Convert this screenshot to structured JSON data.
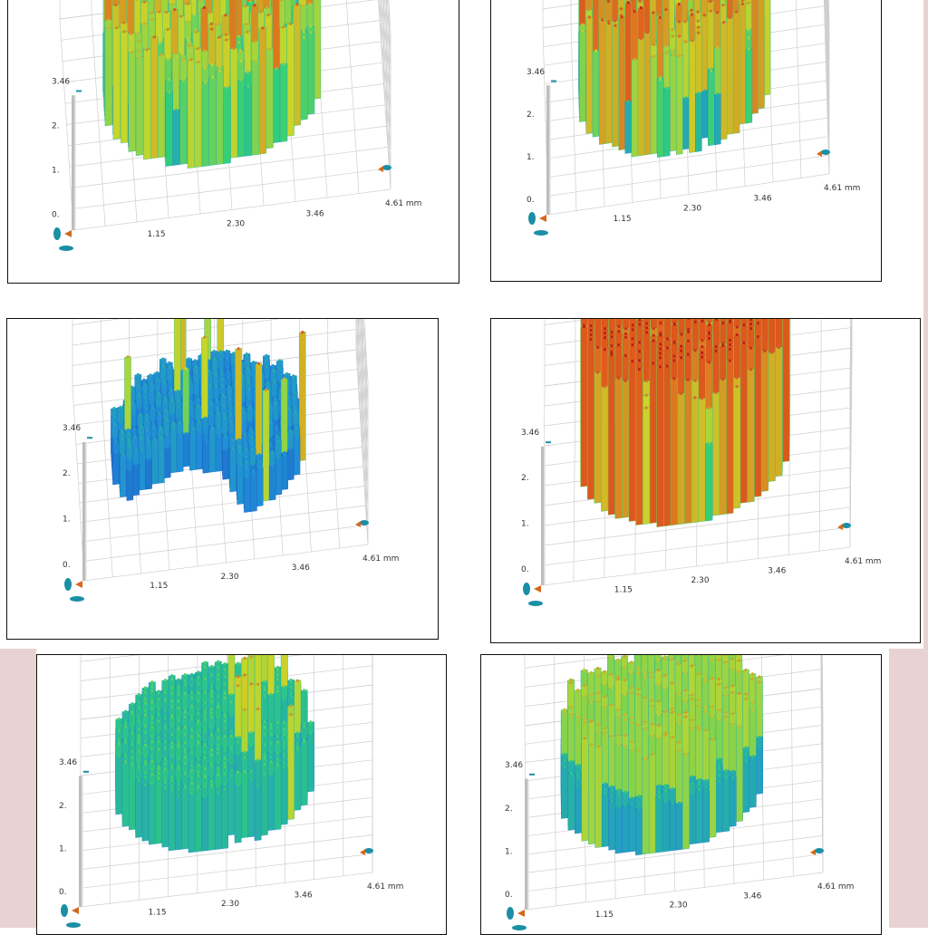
{
  "chart_data": [
    {
      "type": "surface3d",
      "panel": "top-left",
      "x_ticks": [
        "1.15",
        "2.30",
        "3.46",
        "4.61 mm"
      ],
      "z_ticks": [
        "0.0",
        "1.1",
        "2.3",
        "3.46"
      ],
      "z_tick_labels_shown": [
        "0.",
        "1.",
        "2.",
        "3.46"
      ],
      "colormap": [
        "#1a2eb8",
        "#1f8fd6",
        "#2fcf7a",
        "#c9d62a",
        "#e0641e",
        "#c81a14"
      ],
      "surface": {
        "shape": "disc",
        "texture": "spiky",
        "cutout": "none",
        "mean_height": 0.5,
        "variability": 0.55,
        "hot_fraction": 0.25
      }
    },
    {
      "type": "surface3d",
      "panel": "top-right",
      "x_ticks": [
        "1.15",
        "2.30",
        "3.46",
        "4.61 mm"
      ],
      "z_ticks": [
        "0.0",
        "1.1",
        "2.3",
        "3.46"
      ],
      "z_tick_labels_shown": [
        "0.",
        "1.",
        "2.",
        "3.46"
      ],
      "colormap": [
        "#1a2eb8",
        "#1f8fd6",
        "#2fcf7a",
        "#c9d62a",
        "#e0641e",
        "#c81a14"
      ],
      "surface": {
        "shape": "disc",
        "texture": "spiky",
        "cutout": "none",
        "mean_height": 0.55,
        "variability": 0.5,
        "hot_fraction": 0.35
      }
    },
    {
      "type": "surface3d",
      "panel": "middle-left",
      "x_ticks": [
        "1.15",
        "2.30",
        "3.46",
        "4.61 mm"
      ],
      "z_ticks": [
        "0.0",
        "1.1",
        "2.3",
        "3.46"
      ],
      "z_tick_labels_shown": [
        "0.",
        "1.",
        "2.",
        "3.46"
      ],
      "colormap": [
        "#1a2eb8",
        "#1f8fd6",
        "#2fcf7a",
        "#c9d62a",
        "#e0641e",
        "#c81a14"
      ],
      "surface": {
        "shape": "disc",
        "texture": "low-with-notch",
        "cutout": "front-left-wedge",
        "mean_height": 0.18,
        "variability": 0.2,
        "hot_fraction": 0.06
      }
    },
    {
      "type": "surface3d",
      "panel": "middle-right",
      "x_ticks": [
        "1.15",
        "2.30",
        "3.46",
        "4.61 mm"
      ],
      "z_ticks": [
        "0.0",
        "1.1",
        "2.3",
        "3.46"
      ],
      "z_tick_labels_shown": [
        "0.",
        "1.",
        "2.",
        "3.46"
      ],
      "colormap": [
        "#1a2eb8",
        "#1f8fd6",
        "#2fcf7a",
        "#c9d62a",
        "#e0641e",
        "#c81a14"
      ],
      "surface": {
        "shape": "disc",
        "texture": "dense-high",
        "cutout": "none",
        "mean_height": 0.75,
        "variability": 0.25,
        "hot_fraction": 0.65
      }
    },
    {
      "type": "surface3d",
      "panel": "bottom-left",
      "x_ticks": [
        "1.15",
        "2.30",
        "3.46",
        "4.61 mm"
      ],
      "z_ticks": [
        "0.0",
        "1.1",
        "2.3",
        "3.46"
      ],
      "z_tick_labels_shown": [
        "0.",
        "1.",
        "2.",
        "3.46"
      ],
      "colormap": [
        "#1a2eb8",
        "#1f8fd6",
        "#2fcf7a",
        "#c9d62a",
        "#e0641e",
        "#c81a14"
      ],
      "surface": {
        "shape": "disc",
        "texture": "plateau-with-gaps",
        "cutout": "right-holes",
        "mean_height": 0.35,
        "variability": 0.18,
        "hot_fraction": 0.1
      }
    },
    {
      "type": "surface3d",
      "panel": "bottom-right",
      "x_ticks": [
        "1.15",
        "2.30",
        "3.46",
        "4.61 mm"
      ],
      "z_ticks": [
        "0.0",
        "1.1",
        "2.3",
        "3.46"
      ],
      "z_tick_labels_shown": [
        "0.",
        "1.",
        "2.",
        "3.46"
      ],
      "colormap": [
        "#1a2eb8",
        "#1f8fd6",
        "#2fcf7a",
        "#c9d62a",
        "#e0641e",
        "#c81a14"
      ],
      "surface": {
        "shape": "disc",
        "texture": "diagonal-ridges",
        "cutout": "none",
        "mean_height": 0.4,
        "variability": 0.2,
        "hot_fraction": 0.2
      }
    }
  ]
}
